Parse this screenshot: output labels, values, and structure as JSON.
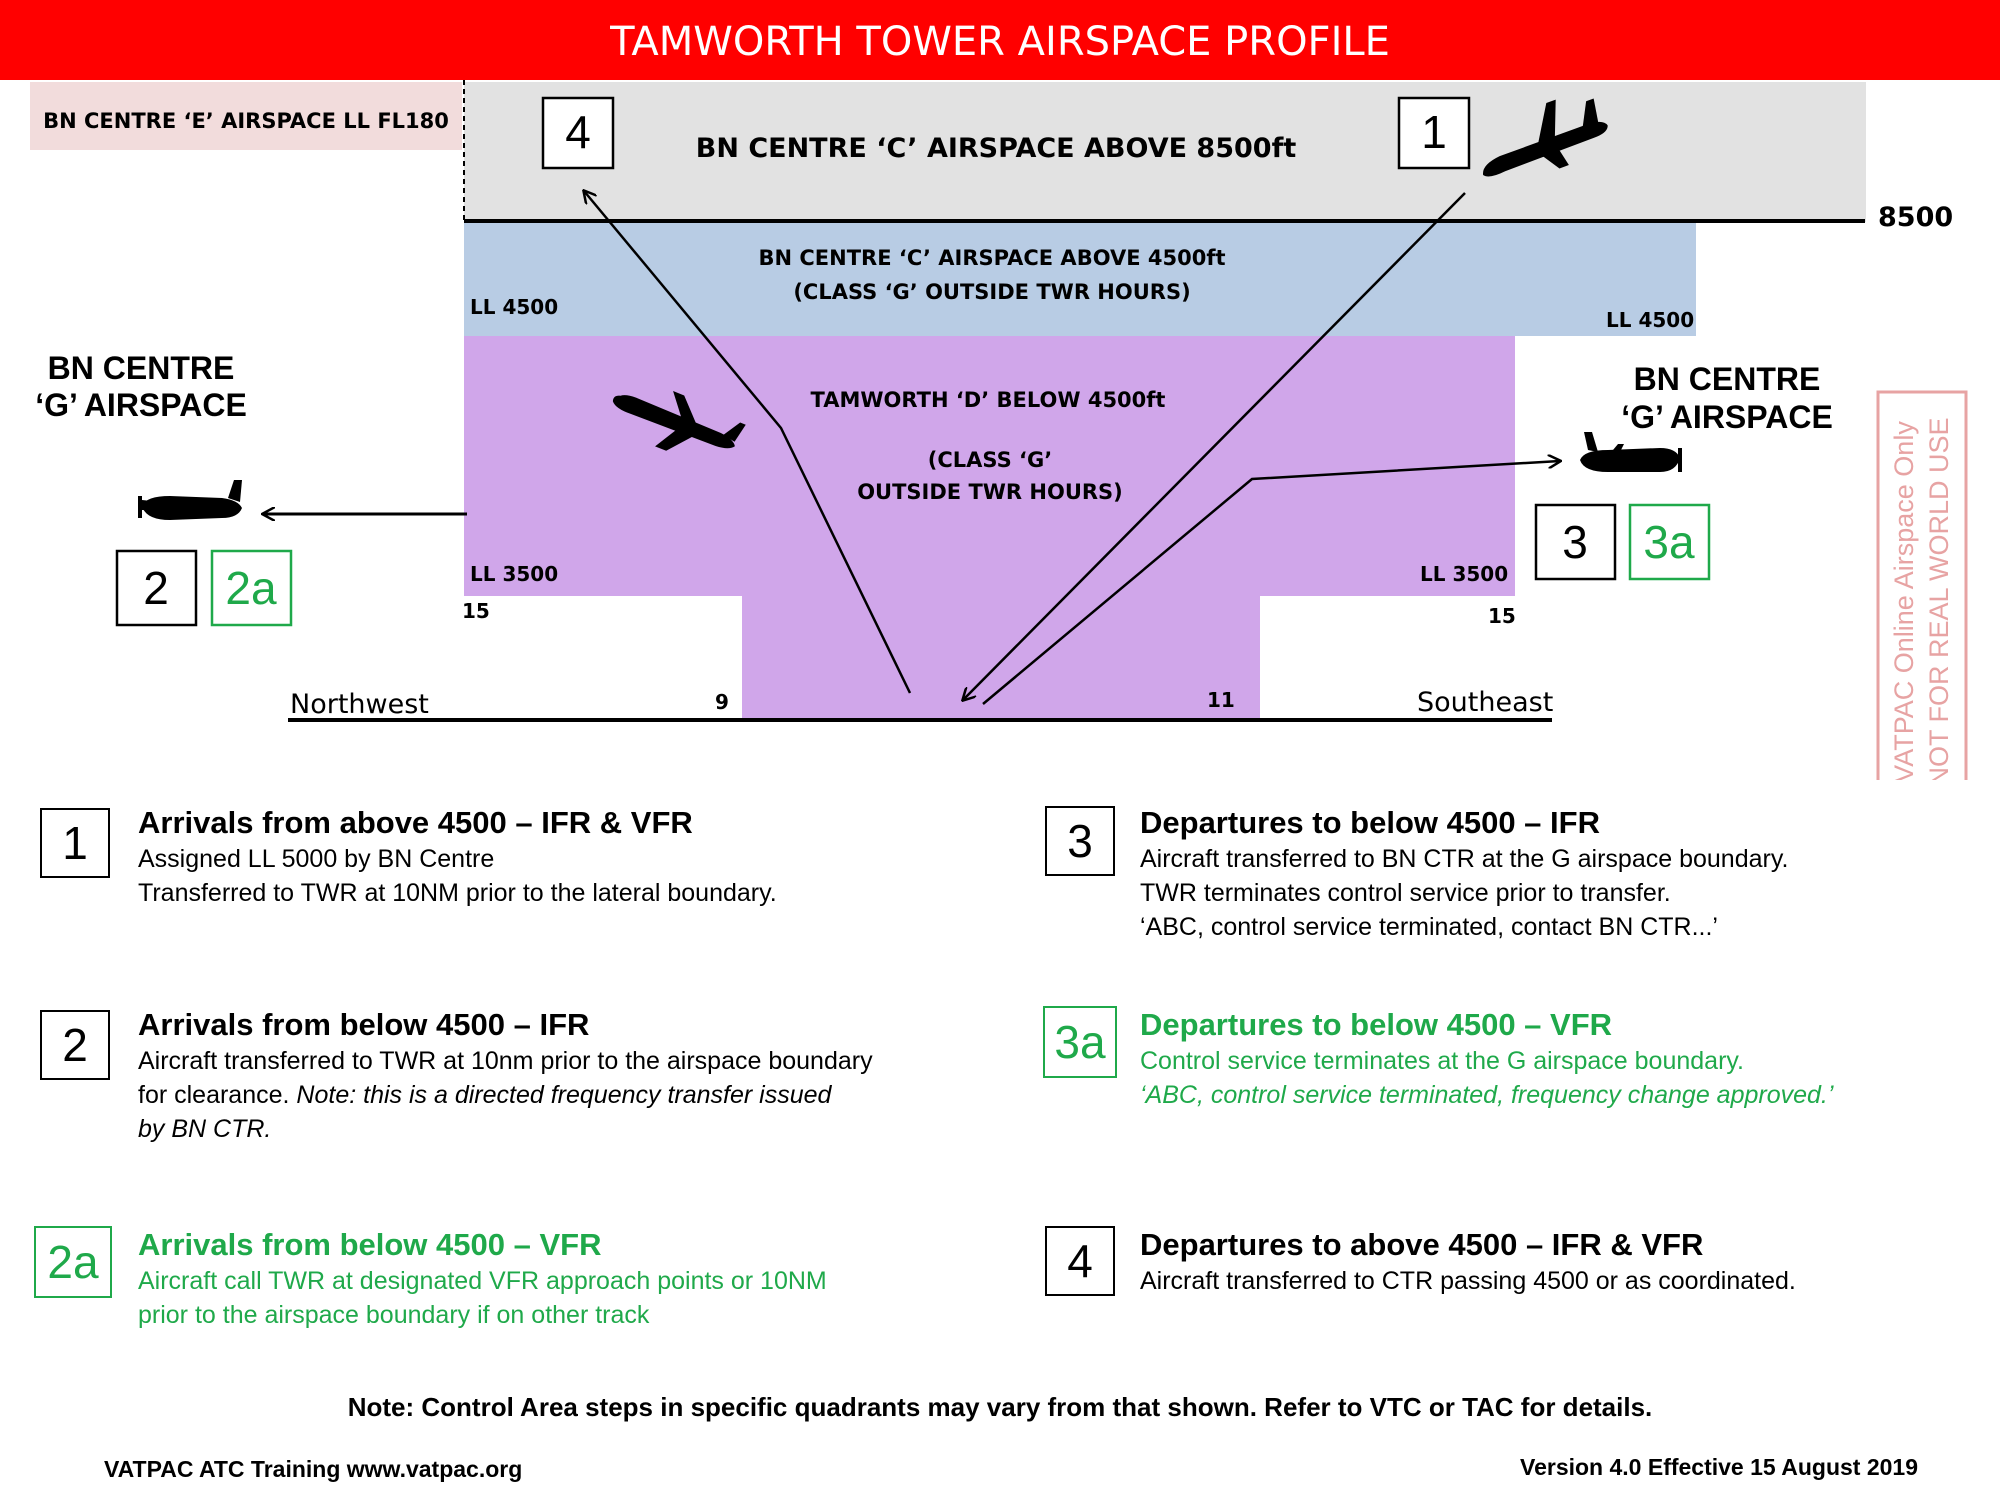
{
  "title": "TAMWORTH TOWER AIRSPACE PROFILE",
  "colors": {
    "title_bar": "#ff0000",
    "class_e_box": "#f2dcdc",
    "class_c_upper": "#e2e2e2",
    "class_c_lower": "#b8cce4",
    "class_d": "#d0a6ea",
    "vfr_green": "#1fa94a",
    "watermark": "#e7a3a3"
  },
  "labels": {
    "class_e": "BN CENTRE ‘E’ AIRSPACE LL FL180",
    "class_c_upper": "BN CENTRE ‘C’ AIRSPACE ABOVE 8500ft",
    "class_c_lower_1": "BN CENTRE ‘C’ AIRSPACE ABOVE 4500ft",
    "class_c_lower_2": "(CLASS ‘G’ OUTSIDE TWR HOURS)",
    "class_d_1": "TAMWORTH  ‘D’ BELOW 4500ft",
    "class_d_2": "(CLASS ‘G’",
    "class_d_3": "OUTSIDE TWR HOURS)",
    "g_left_1": "BN CENTRE",
    "g_left_2": "‘G’ AIRSPACE",
    "g_right_1": "BN CENTRE",
    "g_right_2": "‘G’ AIRSPACE",
    "alt_8500": "8500",
    "ll4500_left": "LL 4500",
    "ll4500_right": "LL 4500",
    "ll3500_left": "LL 3500",
    "ll3500_right": "LL 3500",
    "dist_15_left": "15",
    "dist_15_right": "15",
    "dist_9": "9",
    "dist_11": "11",
    "northwest": "Northwest",
    "southeast": "Southeast",
    "box_4": "4",
    "box_1": "1",
    "box_2": "2",
    "box_2a": "2a",
    "box_3": "3",
    "box_3a": "3a",
    "watermark_1": "VATPAC Online Airspace Only",
    "watermark_2": "NOT FOR REAL WORLD USE"
  },
  "legend": [
    {
      "id": "1",
      "green": false,
      "title": "Arrivals from above 4500 – IFR & VFR",
      "lines": [
        "Assigned LL 5000 by BN Centre",
        "Transferred to TWR at 10NM prior to the lateral boundary."
      ]
    },
    {
      "id": "2",
      "green": false,
      "title": "Arrivals from below 4500 – IFR",
      "line1": "Aircraft transferred to TWR at 10nm prior to the airspace boundary",
      "line2_plain": "for clearance. ",
      "line2_italic": "Note: this is a directed frequency transfer issued",
      "line3_italic": "by BN CTR."
    },
    {
      "id": "2a",
      "green": true,
      "title": "Arrivals from below 4500 – VFR",
      "lines": [
        "Aircraft call TWR at designated VFR approach points or 10NM",
        "prior to the airspace boundary if on other track"
      ]
    },
    {
      "id": "3",
      "green": false,
      "title": "Departures to below 4500 – IFR",
      "lines": [
        "Aircraft transferred to BN CTR at the G airspace boundary.",
        "TWR terminates control service prior to transfer.",
        "‘ABC, control service terminated, contact BN CTR...’"
      ]
    },
    {
      "id": "3a",
      "green": true,
      "title": "Departures to below 4500 – VFR",
      "line1": "Control service terminates at the G airspace boundary.",
      "line2_italic": "‘ABC, control service terminated, frequency change approved.’"
    },
    {
      "id": "4",
      "green": false,
      "title": "Departures to above 4500 – IFR & VFR",
      "lines": [
        "Aircraft transferred to CTR passing 4500 or as coordinated."
      ]
    }
  ],
  "note": "Note: Control Area steps in specific quadrants may vary from that shown. Refer to VTC or TAC for details.",
  "footer_left": "VATPAC ATC Training www.vatpac.org",
  "footer_right": "Version 4.0 Effective 15 August 2019"
}
